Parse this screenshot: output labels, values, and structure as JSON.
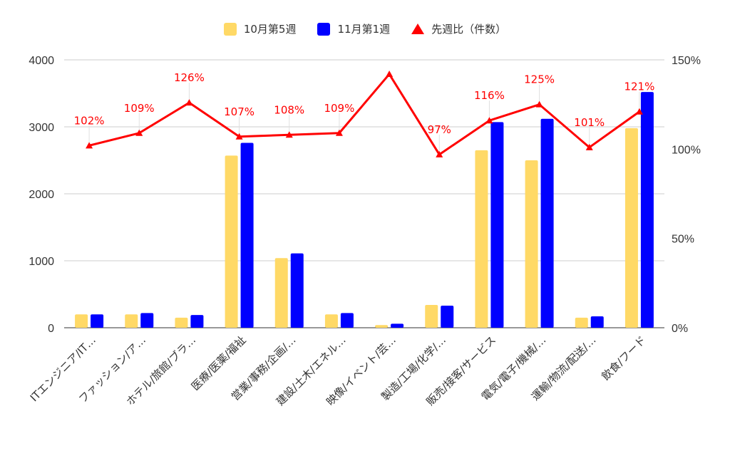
{
  "chart_data": {
    "type": "bar",
    "categories": [
      "ITエンジニア/IT…",
      "ファッション/ア…",
      "ホテル/旅館/ブラ…",
      "医療/医薬/福祉",
      "営業/事務/企画/…",
      "建設/土木/エネル…",
      "映像/イベント/芸…",
      "製造/工場/化学/…",
      "販売/接客/サービス",
      "電気/電子/機械/…",
      "運輸/物流/配送/…",
      "飲食/フード"
    ],
    "series": [
      {
        "name": "10月第5週",
        "type": "bar",
        "axis": "left",
        "color": "#ffd966",
        "values": [
          200,
          200,
          150,
          2570,
          1040,
          200,
          40,
          340,
          2650,
          2500,
          150,
          2980
        ]
      },
      {
        "name": "11月第1週",
        "type": "bar",
        "axis": "left",
        "color": "#0000ff",
        "values": [
          200,
          220,
          190,
          2760,
          1110,
          220,
          60,
          330,
          3070,
          3120,
          170,
          3520
        ]
      },
      {
        "name": "先週比（件数）",
        "type": "line",
        "axis": "right",
        "color": "#ff0000",
        "values": [
          102,
          109,
          126,
          107,
          108,
          109,
          142,
          97,
          116,
          125,
          101,
          121
        ],
        "labels": [
          "102%",
          "109%",
          "126%",
          "107%",
          "108%",
          "109%",
          "",
          "97%",
          "116%",
          "125%",
          "101%",
          "121%"
        ]
      }
    ],
    "y_left": {
      "ticks": [
        "0",
        "1000",
        "2000",
        "3000",
        "4000"
      ],
      "range": [
        0,
        4000
      ]
    },
    "y_right": {
      "ticks": [
        "0%",
        "50%",
        "100%",
        "150%"
      ],
      "range": [
        0,
        150
      ]
    },
    "legend_position": "top",
    "grid": true
  }
}
